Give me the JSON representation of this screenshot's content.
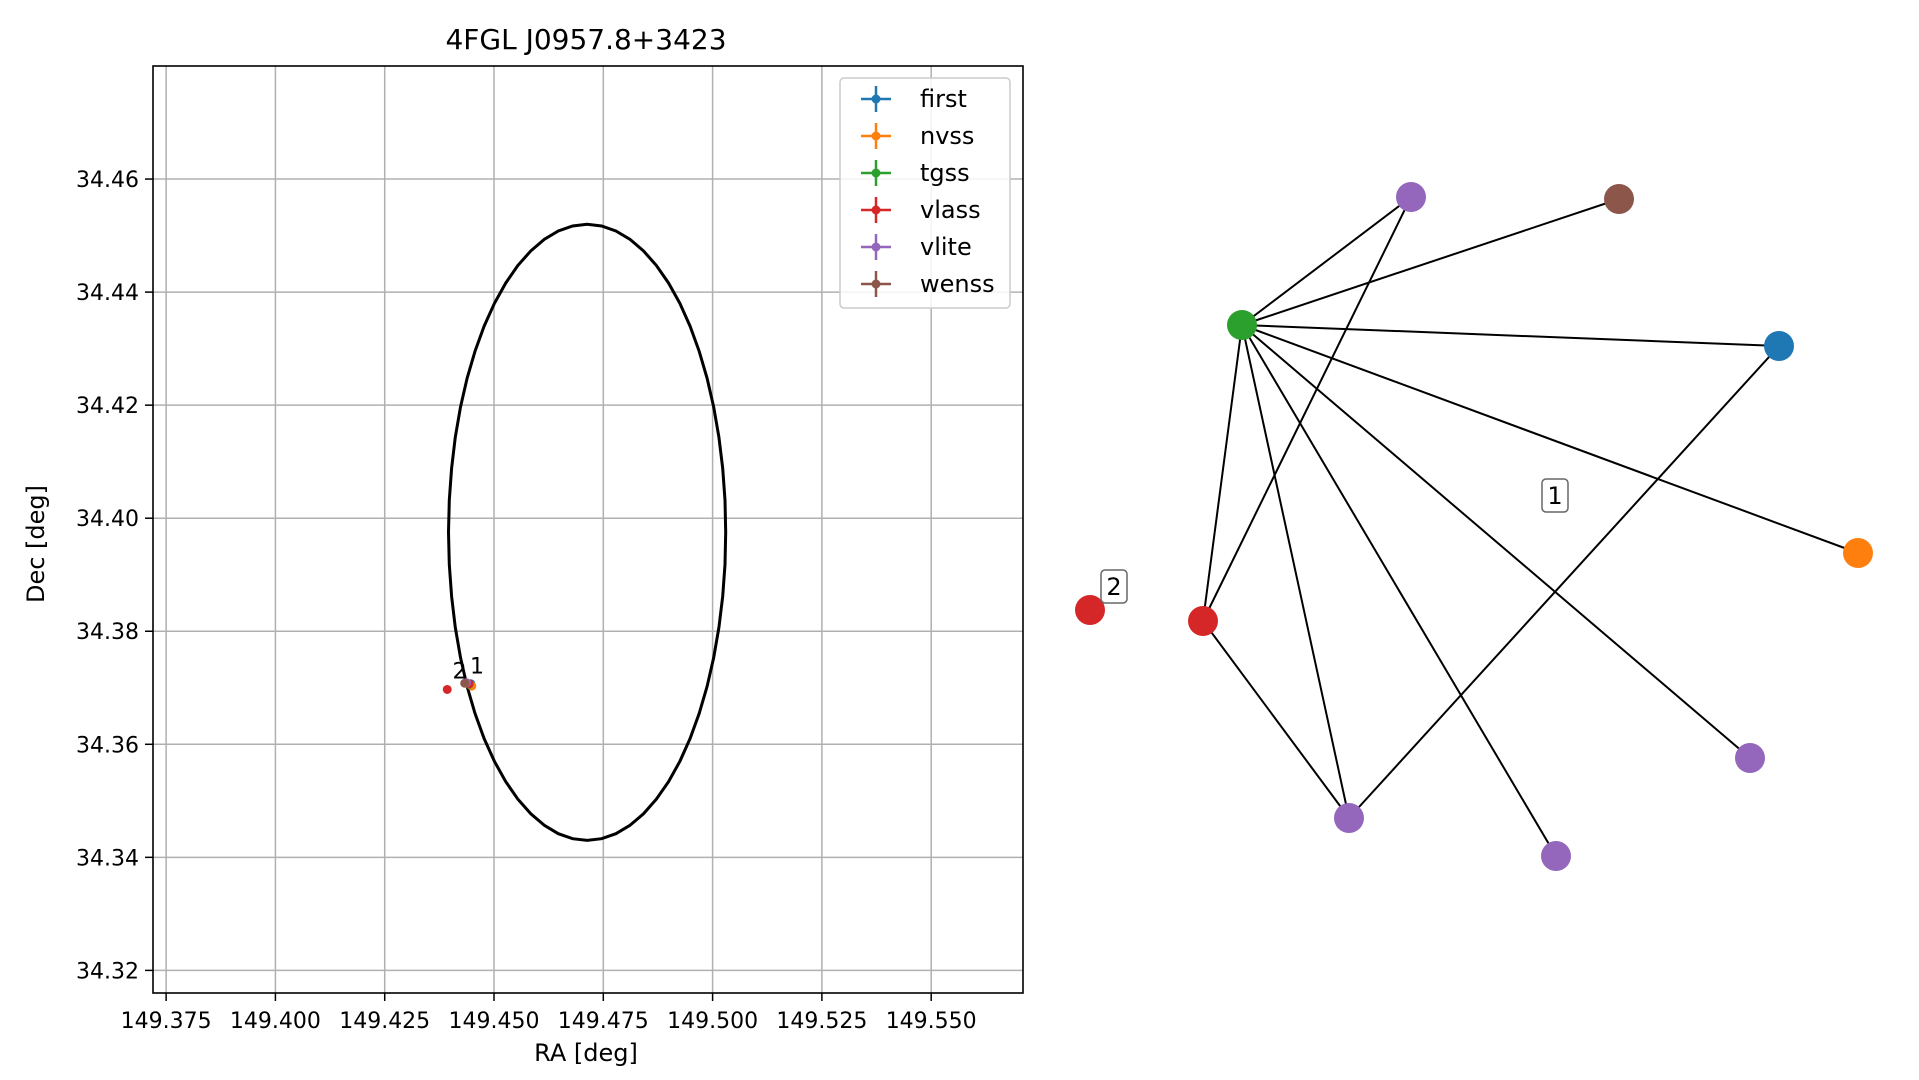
{
  "chart_data": [
    {
      "type": "scatter",
      "title": "4FGL J0957.8+3423",
      "xlabel": "RA [deg]",
      "ylabel": "Dec [deg]",
      "xlim": [
        149.372,
        149.571
      ],
      "ylim": [
        34.316,
        34.48
      ],
      "xticks": [
        "149.375",
        "149.400",
        "149.425",
        "149.450",
        "149.475",
        "149.500",
        "149.525",
        "149.550"
      ],
      "xtick_values": [
        149.375,
        149.4,
        149.425,
        149.45,
        149.475,
        149.5,
        149.525,
        149.55
      ],
      "yticks": [
        "34.32",
        "34.34",
        "34.36",
        "34.38",
        "34.40",
        "34.42",
        "34.44",
        "34.46"
      ],
      "ytick_values": [
        34.32,
        34.34,
        34.36,
        34.38,
        34.4,
        34.42,
        34.44,
        34.46
      ],
      "grid": true,
      "legend_position": "top-right",
      "ellipse": {
        "ra_center": 149.4713,
        "dec_center": 34.3975,
        "ra_half_width": 0.0317,
        "dec_half_height": 0.0545
      },
      "series": [
        {
          "name": "first",
          "color": "#1f77b4",
          "points": [
            [
              149.4447,
              34.3707
            ]
          ]
        },
        {
          "name": "nvss",
          "color": "#ff7f0e",
          "points": [
            [
              149.4449,
              34.3703
            ]
          ]
        },
        {
          "name": "tgss",
          "color": "#2ca02c",
          "points": [
            [
              149.4443,
              34.3706
            ]
          ]
        },
        {
          "name": "vlass",
          "color": "#d62728",
          "points": [
            [
              149.4443,
              34.3707
            ],
            [
              149.4393,
              34.3697
            ]
          ]
        },
        {
          "name": "vlite",
          "color": "#9467bd",
          "points": [
            [
              149.4437,
              34.3709
            ]
          ]
        },
        {
          "name": "wenss",
          "color": "#8c564b",
          "points": [
            [
              149.4433,
              34.3708
            ]
          ]
        }
      ],
      "annotations": [
        {
          "text": "1",
          "ra": 149.4445,
          "dec": 34.3725
        },
        {
          "text": "2",
          "ra": 149.4405,
          "dec": 34.3716
        }
      ]
    },
    {
      "type": "network",
      "nodes": [
        {
          "id": "tgss",
          "color": "#2ca02c"
        },
        {
          "id": "vlite_top",
          "color": "#9467bd"
        },
        {
          "id": "wenss",
          "color": "#8c564b"
        },
        {
          "id": "first",
          "color": "#1f77b4"
        },
        {
          "id": "nvss",
          "color": "#ff7f0e"
        },
        {
          "id": "vlite_right",
          "color": "#9467bd"
        },
        {
          "id": "vlite_bottom",
          "color": "#9467bd"
        },
        {
          "id": "vlite_left",
          "color": "#9467bd"
        },
        {
          "id": "vlass_1",
          "color": "#d62728"
        },
        {
          "id": "vlass_2",
          "color": "#d62728"
        }
      ],
      "edges": [
        [
          "tgss",
          "vlite_top"
        ],
        [
          "tgss",
          "wenss"
        ],
        [
          "tgss",
          "first"
        ],
        [
          "tgss",
          "nvss"
        ],
        [
          "tgss",
          "vlite_right"
        ],
        [
          "tgss",
          "vlite_bottom"
        ],
        [
          "tgss",
          "vlite_left"
        ],
        [
          "tgss",
          "vlass_1"
        ],
        [
          "vlite_top",
          "vlass_1"
        ],
        [
          "vlass_1",
          "vlite_left"
        ],
        [
          "vlite_left",
          "first"
        ]
      ],
      "labels": [
        {
          "text": "1"
        },
        {
          "text": "2"
        }
      ]
    }
  ]
}
